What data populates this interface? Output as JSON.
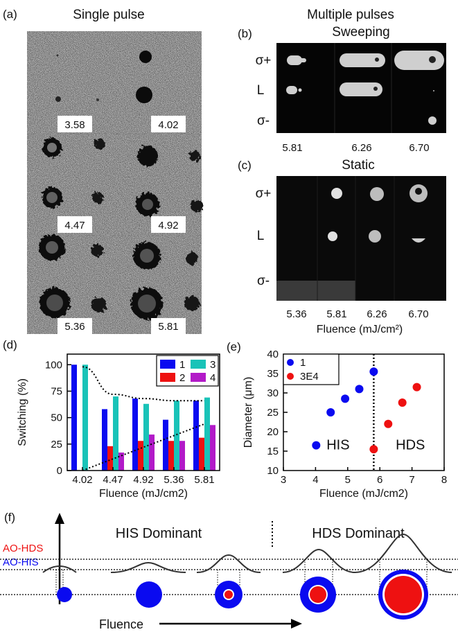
{
  "panel_a": {
    "label": "(a)",
    "title": "Single pulse",
    "fluence_labels": [
      "3.58",
      "4.02",
      "4.47",
      "4.92",
      "5.36",
      "5.81"
    ]
  },
  "header_right": "Multiple pulses",
  "panel_b": {
    "label": "(b)",
    "title": "Sweeping",
    "row_labels": [
      "σ+",
      "L",
      "σ-"
    ],
    "fluence_labels": [
      "5.81",
      "6.26",
      "6.70"
    ]
  },
  "panel_c": {
    "label": "(c)",
    "title": "Static",
    "row_labels": [
      "σ+",
      "L",
      "σ-"
    ],
    "fluence_labels": [
      "5.36",
      "5.81",
      "6.26",
      "6.70"
    ],
    "x_title": "Fluence (mJ/cm²)"
  },
  "panel_f": {
    "label": "(f)",
    "his_dominant": "HIS Dominant",
    "hds_dominant": "HDS Dominant",
    "ao_hds": "AO-HDS",
    "ao_his": "AO-HIS",
    "fluence": "Fluence"
  },
  "colors": {
    "blue": "#0a0af0",
    "red": "#ee1111",
    "cyan": "#19c3b8",
    "purple": "#b21ac8"
  },
  "chart_data": [
    {
      "panel": "(d)",
      "type": "bar",
      "xlabel": "Fluence (mJ/cm2)",
      "ylabel": "Switching (%)",
      "ylim": [
        0,
        110
      ],
      "yticks": [
        0,
        25,
        50,
        75,
        100
      ],
      "categories": [
        "4.02",
        "4.47",
        "4.92",
        "5.36",
        "5.81"
      ],
      "legend_position": "top-right",
      "series": [
        {
          "name": "1",
          "color": "#0a0af0",
          "values": [
            100,
            58,
            68,
            48,
            66
          ]
        },
        {
          "name": "2",
          "color": "#ee1111",
          "values": [
            0,
            23,
            28,
            28,
            31
          ]
        },
        {
          "name": "3",
          "color": "#19c3b8",
          "values": [
            100,
            70,
            63,
            66,
            69
          ]
        },
        {
          "name": "4",
          "color": "#b21ac8",
          "values": [
            0,
            17,
            34,
            28,
            43
          ]
        }
      ],
      "trend_lines": [
        {
          "style": "dotted",
          "points": [
            [
              4.02,
              98
            ],
            [
              4.47,
              72
            ],
            [
              4.92,
              68
            ],
            [
              5.36,
              66
            ],
            [
              5.81,
              66
            ]
          ]
        },
        {
          "style": "dotted",
          "points": [
            [
              4.02,
              0
            ],
            [
              5.81,
              44
            ]
          ]
        }
      ]
    },
    {
      "panel": "(e)",
      "type": "scatter",
      "xlabel": "Fluence (mJ/cm2)",
      "ylabel": "Diameter (μm)",
      "xlim": [
        3,
        8
      ],
      "ylim": [
        10,
        40
      ],
      "xticks": [
        3,
        4,
        5,
        6,
        7,
        8
      ],
      "yticks": [
        10,
        15,
        20,
        25,
        30,
        35,
        40
      ],
      "legend_position": "top-left",
      "divider_x": 5.81,
      "region_labels": [
        "HIS",
        "HDS"
      ],
      "series": [
        {
          "name": "1",
          "color": "#0a0af0",
          "x": [
            4.02,
            4.47,
            4.92,
            5.36,
            5.81
          ],
          "y": [
            16.5,
            25,
            28.5,
            31,
            35.5
          ]
        },
        {
          "name": "3E4",
          "color": "#ee1111",
          "x": [
            5.81,
            6.26,
            6.7,
            7.15
          ],
          "y": [
            15.5,
            22,
            27.5,
            31.5
          ]
        }
      ]
    }
  ]
}
